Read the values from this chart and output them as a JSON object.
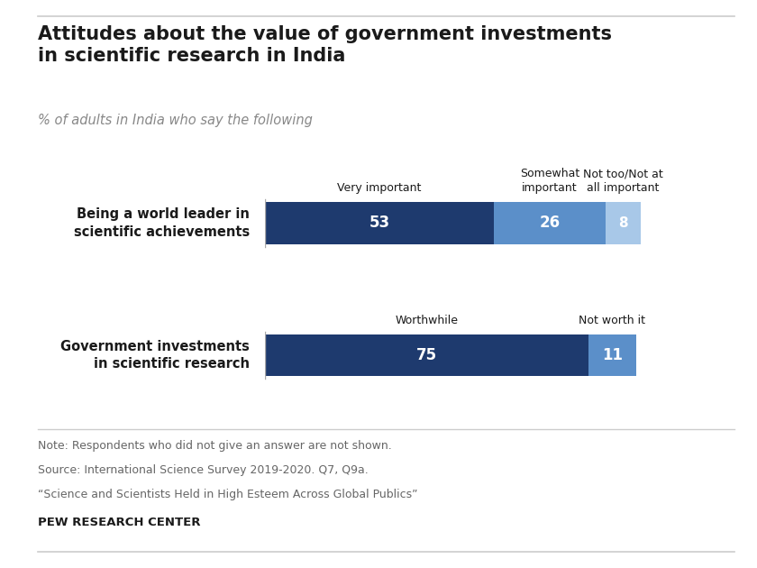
{
  "title": "Attitudes about the value of government investments\nin scientific research in India",
  "subtitle": "% of adults in India who say the following",
  "bars": [
    {
      "label": "Being a world leader in\nscientific achievements",
      "segments": [
        53,
        26,
        8
      ],
      "colors": [
        "#1e3a6e",
        "#5b8fc9",
        "#a8c8e8"
      ],
      "col_labels": [
        "Very important",
        "Somewhat\nimportant",
        "Not too/Not at\nall important"
      ]
    },
    {
      "label": "Government investments\nin scientific research",
      "segments": [
        75,
        11
      ],
      "colors": [
        "#1e3a6e",
        "#5b8fc9"
      ],
      "col_labels": [
        "Worthwhile",
        "Not worth it"
      ]
    }
  ],
  "note_lines": [
    "Note: Respondents who did not give an answer are not shown.",
    "Source: International Science Survey 2019-2020. Q7, Q9a.",
    "“Science and Scientists Held in High Esteem Across Global Publics”"
  ],
  "source_label": "PEW RESEARCH CENTER",
  "background_color": "#ffffff",
  "text_color_dark": "#1a1a1a",
  "text_color_white": "#ffffff",
  "text_color_gray": "#888888",
  "text_color_note": "#666666"
}
